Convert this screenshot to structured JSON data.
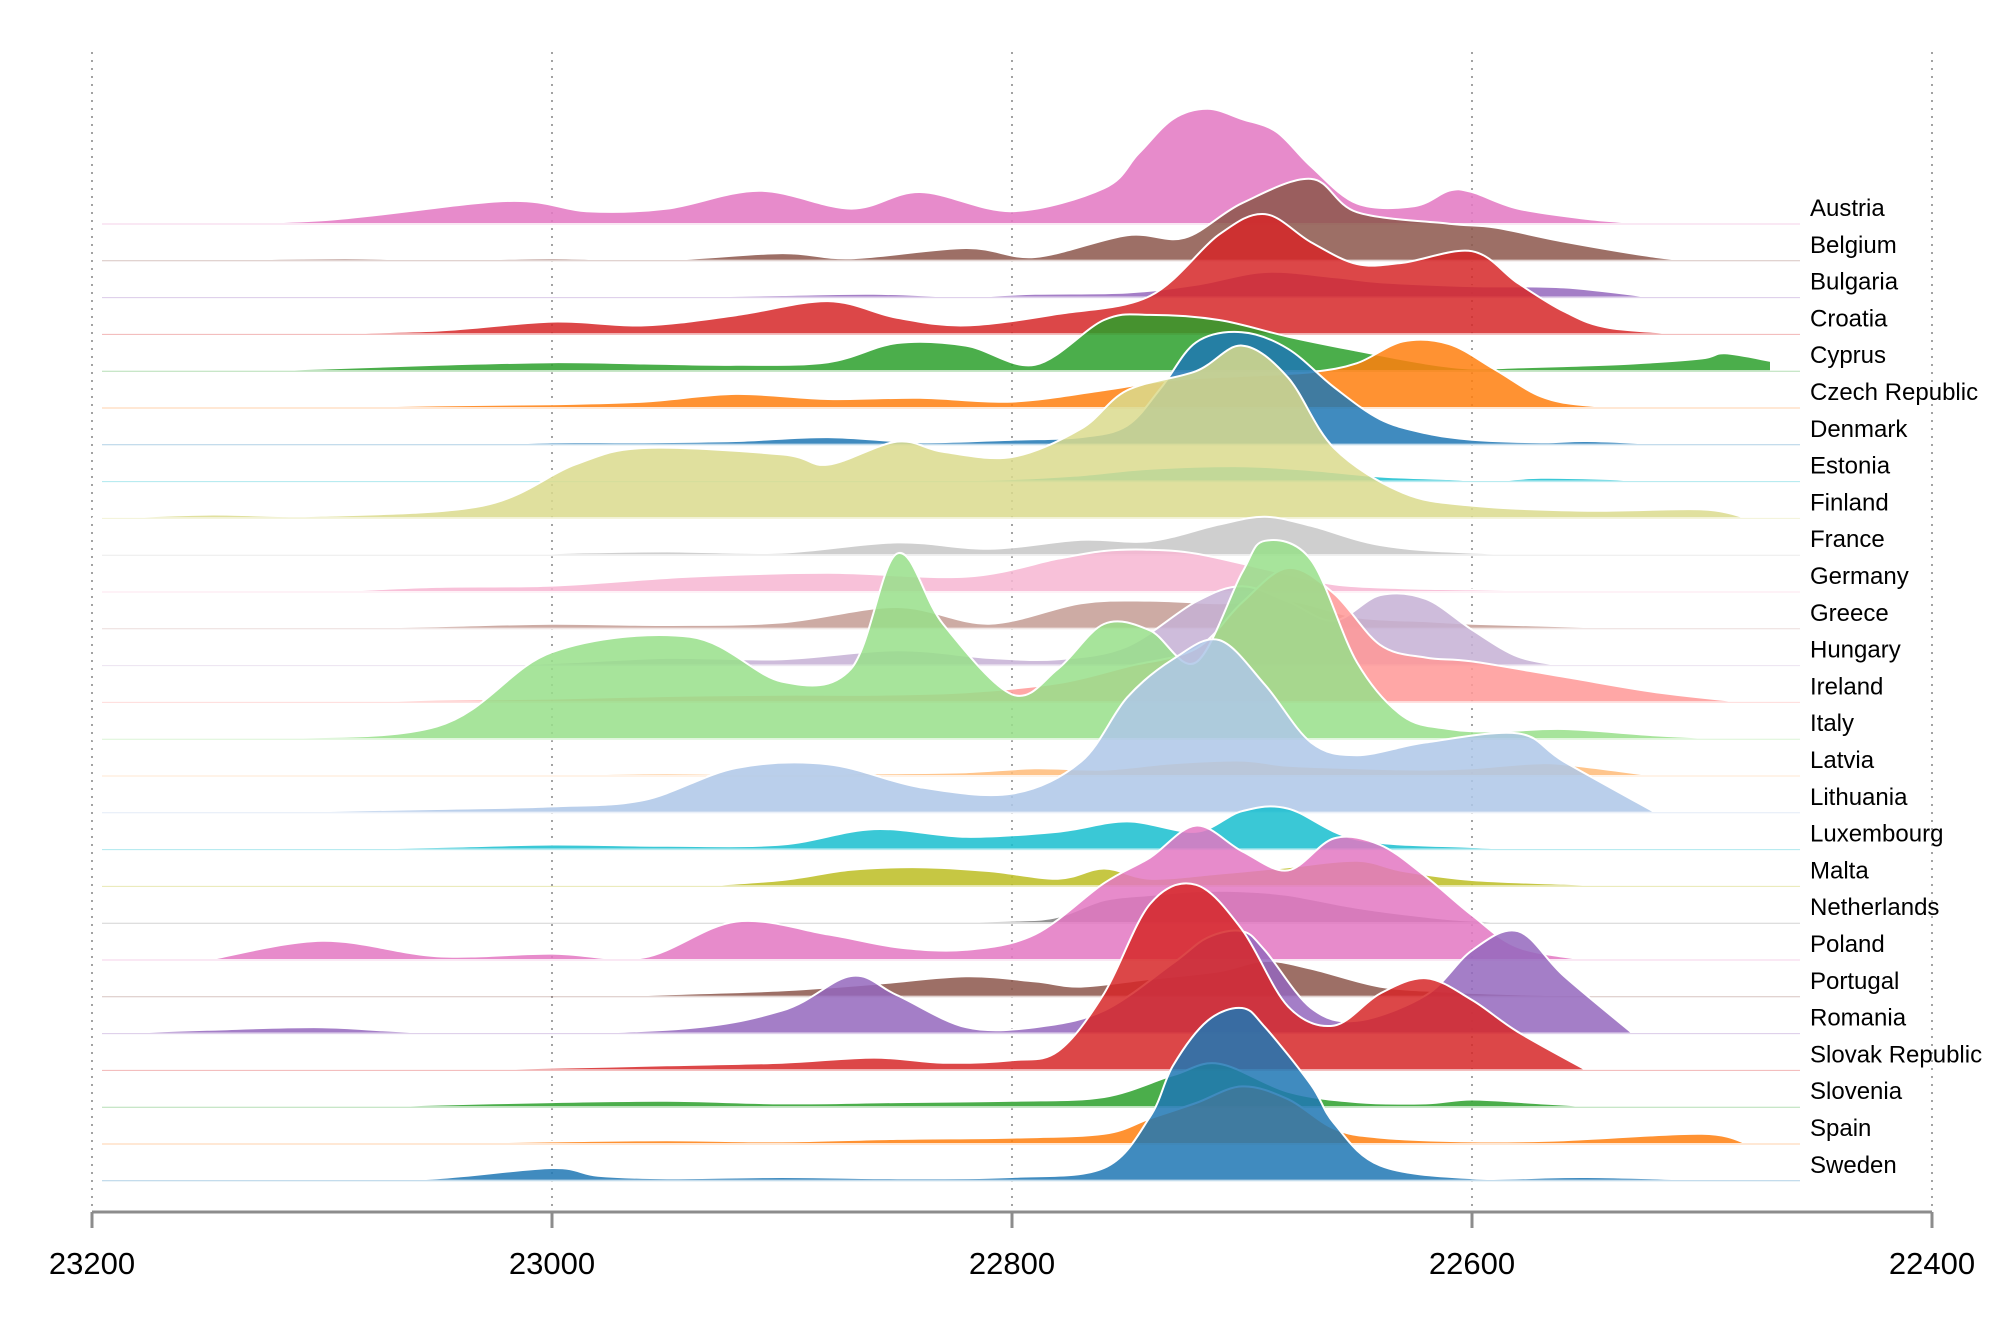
{
  "chart_data": {
    "type": "area",
    "subtype": "ridgeline",
    "title": "",
    "xlabel": "",
    "ylabel": "",
    "x_axis": {
      "range": [
        23200,
        22400
      ],
      "reversed": true,
      "ticks": [
        23200,
        23000,
        22800,
        22600,
        22400
      ],
      "tick_labels": [
        "23200",
        "23000",
        "22800",
        "22600",
        "22400"
      ],
      "grid": "dotted vertical"
    },
    "legend": "none",
    "series": [
      {
        "name": "Austria",
        "color": "#e377c2",
        "x": [
          23180,
          23100,
          23020,
          22985,
          22950,
          22910,
          22870,
          22840,
          22800,
          22760,
          22745,
          22730,
          22715,
          22700,
          22685,
          22670,
          22650,
          22625,
          22610,
          22600,
          22580,
          22550,
          22530,
          22520
        ],
        "y": [
          0.0,
          0.03,
          0.18,
          0.1,
          0.12,
          0.26,
          0.12,
          0.25,
          0.1,
          0.28,
          0.55,
          0.82,
          0.9,
          0.82,
          0.72,
          0.45,
          0.16,
          0.14,
          0.26,
          0.25,
          0.12,
          0.04,
          0.01,
          0.0
        ]
      },
      {
        "name": "Belgium",
        "color": "#8c564b",
        "x": [
          23180,
          23150,
          23090,
          23050,
          23000,
          22950,
          22900,
          22870,
          22820,
          22790,
          22750,
          22725,
          22700,
          22670,
          22650,
          22610,
          22590,
          22560,
          22520,
          22500
        ],
        "y": [
          0.0,
          0.01,
          0.02,
          0.01,
          0.02,
          0.01,
          0.06,
          0.02,
          0.1,
          0.03,
          0.2,
          0.18,
          0.45,
          0.64,
          0.38,
          0.29,
          0.26,
          0.15,
          0.03,
          0.0
        ]
      },
      {
        "name": "Bulgaria",
        "color": "#9467bd",
        "x": [
          22980,
          22950,
          22900,
          22860,
          22820,
          22790,
          22750,
          22720,
          22690,
          22660,
          22640,
          22600,
          22560,
          22520
        ],
        "y": [
          0.0,
          0.01,
          0.02,
          0.03,
          0.01,
          0.03,
          0.04,
          0.1,
          0.2,
          0.16,
          0.12,
          0.09,
          0.08,
          0.0
        ]
      },
      {
        "name": "Croatia",
        "color": "#d62728",
        "x": [
          23150,
          23110,
          23050,
          23000,
          22960,
          22920,
          22880,
          22850,
          22820,
          22780,
          22740,
          22710,
          22690,
          22670,
          22650,
          22630,
          22600,
          22580,
          22560,
          22540,
          22500
        ],
        "y": [
          0.0,
          0.01,
          0.03,
          0.1,
          0.07,
          0.15,
          0.26,
          0.13,
          0.07,
          0.16,
          0.3,
          0.78,
          0.94,
          0.72,
          0.55,
          0.56,
          0.65,
          0.4,
          0.18,
          0.05,
          0.0
        ]
      },
      {
        "name": "Cyprus",
        "color": "#2ca02c",
        "x": [
          23155,
          23100,
          23050,
          23000,
          22960,
          22920,
          22880,
          22850,
          22820,
          22790,
          22760,
          22740,
          22710,
          22680,
          22650,
          22620,
          22600,
          22580,
          22560,
          22530,
          22500,
          22490,
          22470
        ],
        "y": [
          0.0,
          0.02,
          0.05,
          0.07,
          0.06,
          0.05,
          0.07,
          0.22,
          0.2,
          0.05,
          0.4,
          0.44,
          0.4,
          0.27,
          0.16,
          0.06,
          0.02,
          0.03,
          0.04,
          0.06,
          0.1,
          0.14,
          0.08
        ]
      },
      {
        "name": "Czech Republic",
        "color": "#ff7f0e",
        "x": [
          23120,
          23050,
          23000,
          22960,
          22920,
          22880,
          22840,
          22800,
          22760,
          22730,
          22700,
          22670,
          22650,
          22630,
          22610,
          22590,
          22570,
          22550,
          22520
        ],
        "y": [
          0.0,
          0.02,
          0.03,
          0.05,
          0.11,
          0.07,
          0.08,
          0.05,
          0.14,
          0.22,
          0.25,
          0.28,
          0.35,
          0.52,
          0.5,
          0.3,
          0.09,
          0.02,
          0.0
        ]
      },
      {
        "name": "Denmark",
        "color": "#1f77b4",
        "x": [
          23040,
          23000,
          22960,
          22920,
          22880,
          22840,
          22800,
          22770,
          22750,
          22735,
          22720,
          22700,
          22680,
          22660,
          22640,
          22620,
          22600,
          22570,
          22550,
          22520
        ],
        "y": [
          0.0,
          0.02,
          0.02,
          0.03,
          0.06,
          0.02,
          0.04,
          0.06,
          0.15,
          0.45,
          0.8,
          0.88,
          0.75,
          0.45,
          0.2,
          0.09,
          0.04,
          0.02,
          0.03,
          0.01
        ]
      },
      {
        "name": "Estonia",
        "color": "#17becf",
        "x": [
          22900,
          22850,
          22800,
          22770,
          22740,
          22700,
          22670,
          22640,
          22610,
          22590,
          22570,
          22540,
          22520
        ],
        "y": [
          0.0,
          0.01,
          0.02,
          0.05,
          0.1,
          0.12,
          0.09,
          0.04,
          0.02,
          0.01,
          0.03,
          0.02,
          0.0
        ]
      },
      {
        "name": "Finland",
        "color": "#dbdb8d",
        "x": [
          23200,
          23150,
          23100,
          23030,
          22990,
          22960,
          22900,
          22880,
          22850,
          22830,
          22800,
          22770,
          22750,
          22720,
          22700,
          22680,
          22660,
          22630,
          22600,
          22550,
          22500,
          22480
        ],
        "y": [
          0.0,
          0.03,
          0.02,
          0.1,
          0.42,
          0.55,
          0.5,
          0.42,
          0.6,
          0.52,
          0.48,
          0.7,
          1.0,
          1.15,
          1.35,
          1.1,
          0.55,
          0.2,
          0.1,
          0.06,
          0.07,
          0.0
        ]
      },
      {
        "name": "France",
        "color": "#c7c7c7",
        "x": [
          23030,
          22990,
          22950,
          22900,
          22850,
          22810,
          22770,
          22740,
          22710,
          22690,
          22670,
          22640,
          22600,
          22520
        ],
        "y": [
          0.0,
          0.02,
          0.03,
          0.02,
          0.1,
          0.05,
          0.12,
          0.11,
          0.24,
          0.3,
          0.23,
          0.08,
          0.02,
          0.0
        ]
      },
      {
        "name": "Germany",
        "color": "#f7b6d2",
        "x": [
          23100,
          23050,
          23000,
          22940,
          22880,
          22820,
          22780,
          22760,
          22740,
          22720,
          22690,
          22660,
          22630,
          22600,
          22540
        ],
        "y": [
          0.0,
          0.04,
          0.05,
          0.12,
          0.15,
          0.12,
          0.26,
          0.32,
          0.33,
          0.3,
          0.18,
          0.06,
          0.03,
          0.02,
          0.0
        ]
      },
      {
        "name": "Greece",
        "color": "#c49c94",
        "x": [
          23170,
          23100,
          23050,
          23000,
          22950,
          22900,
          22850,
          22810,
          22770,
          22740,
          22710,
          22680,
          22650,
          22620,
          22600,
          22560,
          22520
        ],
        "y": [
          0.0,
          0.01,
          0.02,
          0.04,
          0.03,
          0.05,
          0.17,
          0.04,
          0.2,
          0.22,
          0.2,
          0.22,
          0.09,
          0.06,
          0.04,
          0.02,
          0.0
        ]
      },
      {
        "name": "Hungary",
        "color": "#c5b0d5",
        "x": [
          23050,
          23000,
          22950,
          22900,
          22850,
          22810,
          22780,
          22750,
          22720,
          22700,
          22680,
          22660,
          22640,
          22620,
          22600,
          22580,
          22560
        ],
        "y": [
          0.0,
          0.02,
          0.06,
          0.05,
          0.12,
          0.06,
          0.05,
          0.15,
          0.5,
          0.62,
          0.5,
          0.35,
          0.55,
          0.52,
          0.28,
          0.07,
          0.0
        ]
      },
      {
        "name": "Ireland",
        "color": "#ff9896",
        "x": [
          23130,
          23050,
          23000,
          22950,
          22900,
          22860,
          22820,
          22780,
          22750,
          22720,
          22700,
          22680,
          22660,
          22640,
          22620,
          22600,
          22560,
          22520,
          22480
        ],
        "y": [
          0.0,
          0.02,
          0.03,
          0.05,
          0.06,
          0.06,
          0.08,
          0.15,
          0.28,
          0.42,
          0.78,
          1.05,
          0.85,
          0.45,
          0.35,
          0.32,
          0.2,
          0.08,
          0.0
        ]
      },
      {
        "name": "Italy",
        "color": "#98df8a",
        "x": [
          23200,
          23130,
          23050,
          23000,
          22940,
          22900,
          22870,
          22850,
          22830,
          22800,
          22780,
          22760,
          22740,
          22720,
          22700,
          22690,
          22670,
          22650,
          22630,
          22610,
          22590,
          22560,
          22520,
          22480
        ],
        "y": [
          0.0,
          0.01,
          0.1,
          0.68,
          0.8,
          0.45,
          0.55,
          1.45,
          0.9,
          0.35,
          0.55,
          0.9,
          0.85,
          0.6,
          1.3,
          1.55,
          1.4,
          0.6,
          0.18,
          0.08,
          0.06,
          0.08,
          0.03,
          0.0
        ]
      },
      {
        "name": "Latvia",
        "color": "#ffbb78",
        "x": [
          23040,
          23000,
          22950,
          22900,
          22860,
          22820,
          22790,
          22760,
          22730,
          22700,
          22680,
          22650,
          22620,
          22600,
          22570,
          22550,
          22520
        ],
        "y": [
          0.0,
          0.01,
          0.02,
          0.01,
          0.02,
          0.03,
          0.06,
          0.05,
          0.1,
          0.12,
          0.08,
          0.06,
          0.05,
          0.06,
          0.1,
          0.07,
          0.0
        ]
      },
      {
        "name": "Lithuania",
        "color": "#aec7e8",
        "x": [
          23150,
          23050,
          23000,
          22960,
          22920,
          22880,
          22840,
          22800,
          22770,
          22750,
          22730,
          22710,
          22690,
          22670,
          22650,
          22620,
          22580,
          22560,
          22520
        ],
        "y": [
          0.0,
          0.03,
          0.05,
          0.1,
          0.35,
          0.38,
          0.2,
          0.15,
          0.4,
          0.9,
          1.2,
          1.35,
          1.0,
          0.55,
          0.45,
          0.55,
          0.62,
          0.4,
          0.0
        ]
      },
      {
        "name": "Luxembourg",
        "color": "#17becf",
        "x": [
          23130,
          23050,
          23000,
          22950,
          22900,
          22860,
          22820,
          22780,
          22750,
          22720,
          22700,
          22680,
          22650,
          22600,
          22540
        ],
        "y": [
          0.0,
          0.02,
          0.04,
          0.03,
          0.04,
          0.16,
          0.1,
          0.14,
          0.22,
          0.14,
          0.3,
          0.32,
          0.08,
          0.02,
          0.0
        ]
      },
      {
        "name": "Malta",
        "color": "#bcbd22",
        "x": [
          22940,
          22900,
          22870,
          22840,
          22810,
          22780,
          22760,
          22740,
          22710,
          22680,
          22650,
          22630,
          22600,
          22560,
          22520
        ],
        "y": [
          0.0,
          0.05,
          0.13,
          0.15,
          0.12,
          0.06,
          0.14,
          0.06,
          0.1,
          0.15,
          0.2,
          0.12,
          0.05,
          0.02,
          0.0
        ]
      },
      {
        "name": "Netherlands",
        "color": "#7f7f7f",
        "x": [
          22900,
          22850,
          22800,
          22780,
          22760,
          22740,
          22720,
          22700,
          22680,
          22650,
          22620,
          22600,
          22570,
          22540
        ],
        "y": [
          0.0,
          0.01,
          0.02,
          0.05,
          0.18,
          0.22,
          0.25,
          0.25,
          0.22,
          0.12,
          0.05,
          0.02,
          0.01,
          0.0
        ]
      },
      {
        "name": "Poland",
        "color": "#e377c2",
        "x": [
          23150,
          23100,
          23050,
          23000,
          22960,
          22920,
          22880,
          22850,
          22820,
          22790,
          22760,
          22740,
          22720,
          22700,
          22680,
          22660,
          22640,
          22620,
          22600,
          22580,
          22550
        ],
        "y": [
          0.0,
          0.15,
          0.03,
          0.05,
          0.02,
          0.3,
          0.2,
          0.1,
          0.08,
          0.2,
          0.6,
          0.8,
          1.05,
          0.85,
          0.7,
          0.95,
          0.9,
          0.65,
          0.35,
          0.1,
          0.0
        ]
      },
      {
        "name": "Portugal",
        "color": "#8c564b",
        "x": [
          22990,
          22950,
          22900,
          22860,
          22820,
          22790,
          22770,
          22740,
          22710,
          22690,
          22670,
          22640,
          22610,
          22580,
          22540,
          22520
        ],
        "y": [
          0.0,
          0.02,
          0.05,
          0.1,
          0.16,
          0.12,
          0.08,
          0.14,
          0.2,
          0.28,
          0.22,
          0.08,
          0.04,
          0.02,
          0.01,
          0.0
        ]
      },
      {
        "name": "Romania",
        "color": "#9467bd",
        "x": [
          23200,
          23150,
          23100,
          23050,
          22950,
          22900,
          22870,
          22850,
          22820,
          22790,
          22760,
          22730,
          22715,
          22700,
          22690,
          22670,
          22650,
          22620,
          22600,
          22580,
          22560,
          22530
        ],
        "y": [
          0.0,
          0.03,
          0.05,
          0.01,
          0.03,
          0.18,
          0.45,
          0.3,
          0.05,
          0.05,
          0.18,
          0.55,
          0.75,
          0.8,
          0.65,
          0.2,
          0.1,
          0.3,
          0.65,
          0.8,
          0.45,
          0.0
        ]
      },
      {
        "name": "Slovak Republic",
        "color": "#d62728",
        "x": [
          23120,
          23050,
          23000,
          22950,
          22900,
          22860,
          22830,
          22800,
          22780,
          22760,
          22740,
          22720,
          22700,
          22680,
          22660,
          22640,
          22620,
          22600,
          22580,
          22550
        ],
        "y": [
          0.0,
          0.01,
          0.02,
          0.04,
          0.06,
          0.1,
          0.06,
          0.08,
          0.15,
          0.6,
          1.3,
          1.45,
          1.1,
          0.5,
          0.35,
          0.6,
          0.72,
          0.55,
          0.3,
          0.0
        ]
      },
      {
        "name": "Slovenia",
        "color": "#2ca02c",
        "x": [
          23100,
          23050,
          23000,
          22950,
          22900,
          22850,
          22800,
          22760,
          22730,
          22710,
          22680,
          22650,
          22620,
          22600,
          22570,
          22540
        ],
        "y": [
          0.0,
          0.02,
          0.04,
          0.05,
          0.03,
          0.04,
          0.05,
          0.08,
          0.25,
          0.34,
          0.12,
          0.04,
          0.03,
          0.06,
          0.03,
          0.0
        ]
      },
      {
        "name": "Spain",
        "color": "#ff7f0e",
        "x": [
          23150,
          23050,
          23000,
          22950,
          22900,
          22850,
          22800,
          22760,
          22740,
          22720,
          22700,
          22680,
          22660,
          22640,
          22600,
          22560,
          22500,
          22480
        ],
        "y": [
          0.0,
          0.01,
          0.02,
          0.03,
          0.02,
          0.04,
          0.05,
          0.08,
          0.2,
          0.32,
          0.45,
          0.35,
          0.12,
          0.05,
          0.02,
          0.03,
          0.08,
          0.0
        ]
      },
      {
        "name": "Sweden",
        "color": "#1f77b4",
        "x": [
          23100,
          23050,
          23000,
          22980,
          22950,
          22900,
          22850,
          22800,
          22760,
          22740,
          22730,
          22715,
          22700,
          22690,
          22670,
          22660,
          22640,
          22600,
          22550,
          22480
        ],
        "y": [
          0.0,
          0.02,
          0.1,
          0.04,
          0.02,
          0.03,
          0.02,
          0.03,
          0.1,
          0.5,
          0.9,
          1.25,
          1.35,
          1.2,
          0.75,
          0.45,
          0.12,
          0.02,
          0.03,
          0.0
        ]
      }
    ]
  }
}
